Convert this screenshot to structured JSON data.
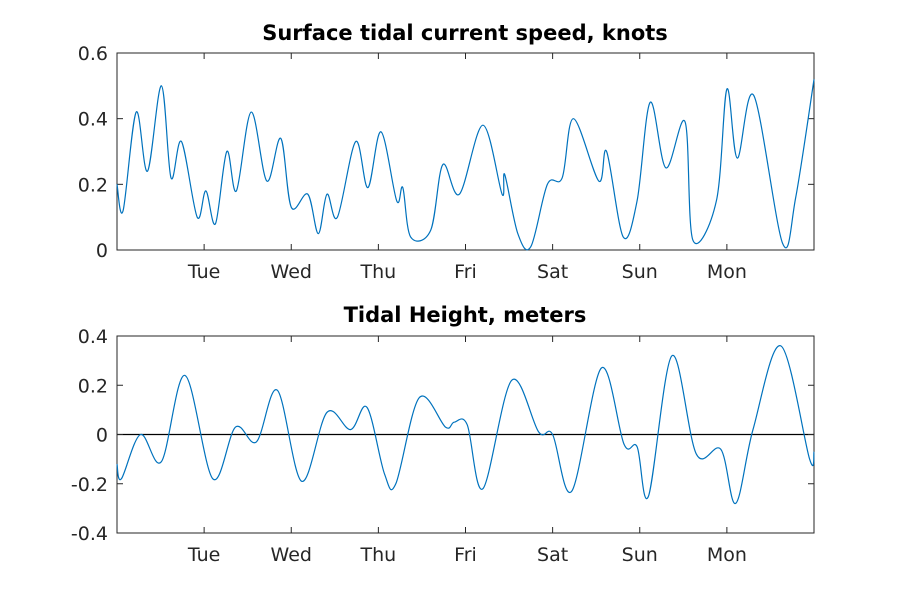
{
  "colors": {
    "series": "#0072bd",
    "axes": "#262626",
    "zero_line": "#000000",
    "background": "#ffffff"
  },
  "chart_data": [
    {
      "type": "line",
      "title": "Surface tidal current speed, knots",
      "xlabel": "",
      "ylabel": "",
      "xlim": [
        0,
        8
      ],
      "ylim": [
        0,
        0.6
      ],
      "yticks": [
        0,
        0.2,
        0.4,
        0.6
      ],
      "ytick_labels": [
        "0",
        "0.2",
        "0.4",
        "0.6"
      ],
      "xticks": [
        1,
        2,
        3,
        4,
        5,
        6,
        7
      ],
      "xtick_labels": [
        "Tue",
        "Wed",
        "Thu",
        "Fri",
        "Sat",
        "Sun",
        "Mon"
      ],
      "grid": false,
      "series": [
        {
          "x": [
            0.0,
            0.07,
            0.22,
            0.35,
            0.51,
            0.62,
            0.74,
            0.92,
            1.02,
            1.13,
            1.26,
            1.37,
            1.54,
            1.72,
            1.88,
            2.0,
            2.19,
            2.31,
            2.41,
            2.53,
            2.74,
            2.88,
            3.03,
            3.21,
            3.28,
            3.37,
            3.6,
            3.74,
            3.93,
            4.2,
            4.42,
            4.45,
            4.6,
            4.75,
            4.94,
            5.11,
            5.24,
            5.53,
            5.62,
            5.81,
            5.97,
            6.12,
            6.3,
            6.52,
            6.61,
            6.88,
            7.0,
            7.12,
            7.31,
            7.64,
            7.79,
            8.0
          ],
          "y": [
            0.2,
            0.12,
            0.42,
            0.24,
            0.5,
            0.22,
            0.33,
            0.1,
            0.18,
            0.08,
            0.3,
            0.18,
            0.42,
            0.21,
            0.34,
            0.13,
            0.17,
            0.05,
            0.17,
            0.1,
            0.33,
            0.19,
            0.36,
            0.15,
            0.19,
            0.04,
            0.06,
            0.26,
            0.17,
            0.38,
            0.17,
            0.23,
            0.05,
            0.01,
            0.2,
            0.22,
            0.4,
            0.21,
            0.3,
            0.04,
            0.15,
            0.45,
            0.25,
            0.39,
            0.03,
            0.15,
            0.49,
            0.28,
            0.47,
            0.02,
            0.16,
            0.52
          ]
        }
      ]
    },
    {
      "type": "line",
      "title": "Tidal Height, meters",
      "xlabel": "",
      "ylabel": "",
      "xlim": [
        0,
        8
      ],
      "ylim": [
        -0.4,
        0.4
      ],
      "yticks": [
        -0.4,
        -0.2,
        0,
        0.2,
        0.4
      ],
      "ytick_labels": [
        "-0.4",
        "-0.2",
        "0",
        "0.2",
        "0.4"
      ],
      "xticks": [
        1,
        2,
        3,
        4,
        5,
        6,
        7
      ],
      "xtick_labels": [
        "Tue",
        "Wed",
        "Thu",
        "Fri",
        "Sat",
        "Sun",
        "Mon"
      ],
      "grid": false,
      "zero_line": true,
      "series": [
        {
          "x": [
            0.0,
            0.05,
            0.27,
            0.51,
            0.78,
            1.1,
            1.36,
            1.6,
            1.84,
            2.12,
            2.41,
            2.68,
            2.87,
            3.07,
            3.2,
            3.47,
            3.77,
            3.87,
            4.02,
            4.2,
            4.53,
            4.84,
            5.0,
            5.22,
            5.56,
            5.82,
            5.97,
            6.1,
            6.37,
            6.65,
            6.93,
            7.1,
            7.3,
            7.62,
            7.95,
            8.0
          ],
          "y": [
            -0.12,
            -0.18,
            0.0,
            -0.11,
            0.24,
            -0.18,
            0.03,
            -0.03,
            0.18,
            -0.19,
            0.09,
            0.02,
            0.11,
            -0.16,
            -0.2,
            0.15,
            0.03,
            0.05,
            0.04,
            -0.22,
            0.22,
            0.01,
            0.0,
            -0.23,
            0.27,
            -0.04,
            -0.05,
            -0.25,
            0.32,
            -0.08,
            -0.06,
            -0.28,
            0.02,
            0.36,
            -0.1,
            -0.07
          ]
        }
      ]
    }
  ]
}
